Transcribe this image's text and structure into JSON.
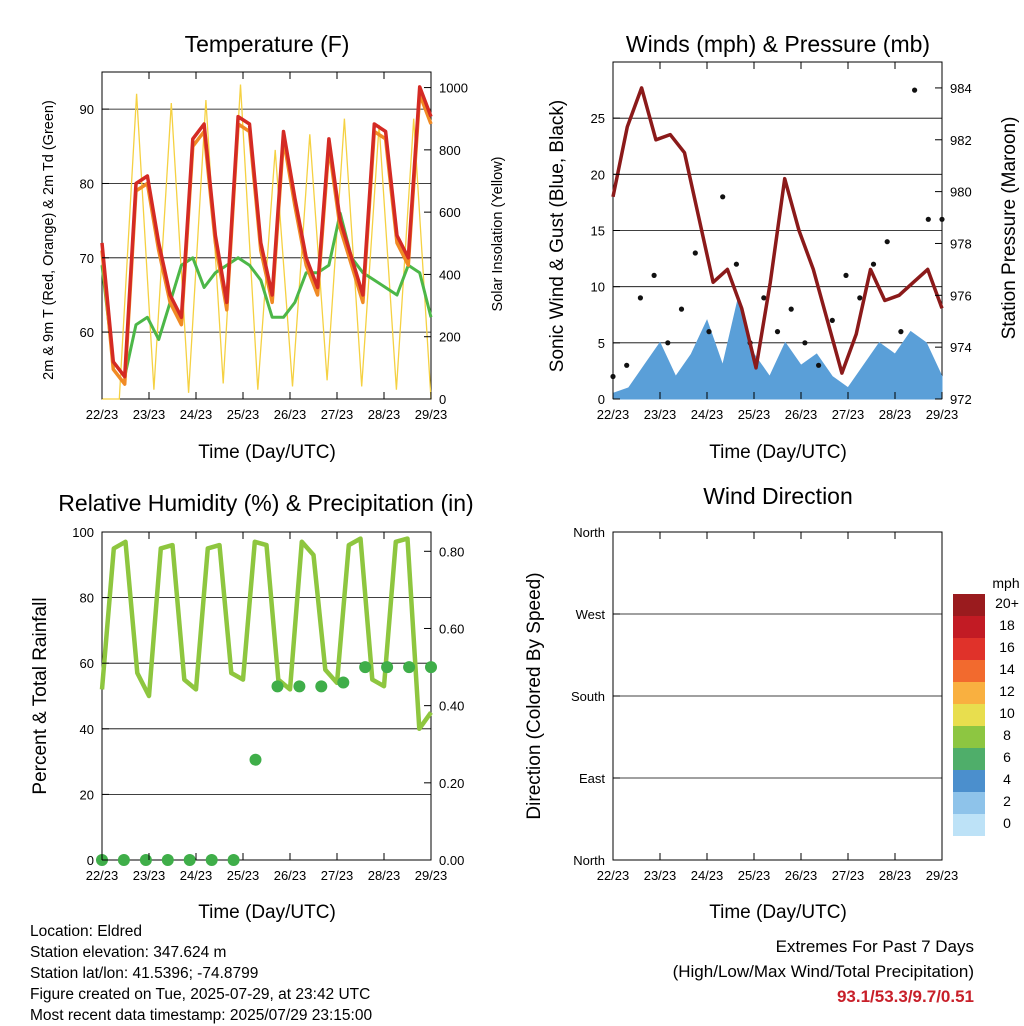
{
  "chart_data": [
    {
      "type": "line",
      "title": "Temperature (F)",
      "xlabel": "Time (Day/UTC)",
      "ylabel": "2m & 9m T (Red, Orange) & 2m Td (Green)",
      "y2label": "Solar Insolation (Yellow)",
      "x_ticks": [
        "22/23",
        "23/23",
        "24/23",
        "25/23",
        "26/23",
        "27/23",
        "28/23",
        "29/23"
      ],
      "y_ticks": [
        "60",
        "70",
        "80",
        "90"
      ],
      "y2_ticks": [
        "0",
        "200",
        "400",
        "600",
        "800",
        "1000"
      ],
      "ylim": [
        51,
        95
      ],
      "y2lim": [
        0,
        1050
      ],
      "grid": true,
      "series": [
        {
          "color": "#d42a24",
          "values": [
            72,
            56,
            54,
            80,
            81,
            72,
            65,
            62,
            86,
            88,
            73,
            64,
            89,
            88,
            72,
            65,
            87,
            78,
            70,
            66,
            86,
            75,
            70,
            65,
            88,
            87,
            73,
            70,
            93,
            89
          ]
        },
        {
          "color": "#f08a24",
          "values": [
            71,
            55,
            53,
            79,
            80,
            71,
            64,
            61,
            85,
            87,
            72,
            63,
            88,
            87,
            71,
            64,
            86,
            77,
            69,
            65,
            85,
            74,
            69,
            64,
            87,
            86,
            72,
            69,
            92,
            88
          ]
        },
        {
          "color": "#4cb748",
          "values": [
            69,
            56,
            54,
            61,
            62,
            59,
            64,
            69,
            70,
            66,
            68,
            69,
            70,
            69,
            67,
            62,
            62,
            64,
            68,
            68,
            69,
            76,
            70,
            68,
            67,
            66,
            65,
            69,
            68,
            62
          ]
        },
        {
          "color": "#f5d142",
          "values": [
            0,
            0,
            980,
            30,
            950,
            20,
            960,
            50,
            1010,
            30,
            800,
            40,
            850,
            60,
            900,
            40,
            880,
            30,
            900,
            0
          ]
        }
      ]
    },
    {
      "type": "scatter",
      "title": "Winds (mph) & Pressure (mb)",
      "xlabel": "Time (Day/UTC)",
      "ylabel": "Sonic Wind & Gust (Blue, Black)",
      "y2label": "Station Pressure (Maroon)",
      "x_ticks": [
        "22/23",
        "23/23",
        "24/23",
        "25/23",
        "26/23",
        "27/23",
        "28/23",
        "29/23"
      ],
      "y_ticks": [
        "0",
        "5",
        "10",
        "15",
        "20",
        "25"
      ],
      "y2_ticks": [
        "972",
        "974",
        "976",
        "978",
        "980",
        "982",
        "984"
      ],
      "ylim": [
        0,
        30
      ],
      "y2lim": [
        972,
        985
      ],
      "grid": true,
      "series": [
        {
          "color": "#8b1a1a",
          "values": [
            979.8,
            982.5,
            984.0,
            982.0,
            982.2,
            981.5,
            979.0,
            976.5,
            977.0,
            975.5,
            973.2,
            976.5,
            980.5,
            978.5,
            977.0,
            975.0,
            973.0,
            974.5,
            977.0,
            975.8,
            976.0,
            976.5,
            977.0,
            975.5
          ]
        },
        {
          "color": "#5a9fd8",
          "values": [
            0.5,
            1,
            3,
            5,
            2,
            4,
            7,
            3,
            9,
            4,
            2,
            5,
            3,
            4,
            2,
            1,
            3,
            5,
            4,
            6,
            5,
            2
          ]
        },
        {
          "color": "#111111",
          "values": [
            2,
            3,
            9,
            11,
            5,
            8,
            13,
            6,
            18,
            12,
            5,
            9,
            6,
            8,
            5,
            3,
            7,
            11,
            9,
            12,
            14,
            6,
            27.5,
            16,
            16
          ]
        }
      ]
    },
    {
      "type": "line",
      "title": "Relative Humidity (%) & Precipitation (in)",
      "xlabel": "Time (Day/UTC)",
      "ylabel": "Percent & Total Rainfall",
      "x_ticks": [
        "22/23",
        "23/23",
        "24/23",
        "25/23",
        "26/23",
        "27/23",
        "28/23",
        "29/23"
      ],
      "y_ticks": [
        "0",
        "20",
        "40",
        "60",
        "80",
        "100"
      ],
      "y2_ticks": [
        "0.00",
        "0.20",
        "0.40",
        "0.60",
        "0.80"
      ],
      "ylim": [
        0,
        100
      ],
      "y2lim": [
        0,
        0.85
      ],
      "grid": true,
      "series": [
        {
          "color": "#8ec63f",
          "values": [
            52,
            95,
            97,
            57,
            50,
            95,
            96,
            55,
            52,
            95,
            96,
            57,
            55,
            97,
            96,
            55,
            52,
            97,
            93,
            58,
            54,
            96,
            98,
            55,
            53,
            97,
            98,
            40,
            45
          ]
        },
        {
          "color": "#3fae49",
          "values": [
            0,
            0,
            0,
            0,
            0,
            0,
            0,
            0.26,
            0.45,
            0.45,
            0.45,
            0.46,
            0.5,
            0.5,
            0.5,
            0.5
          ]
        }
      ]
    },
    {
      "type": "scatter",
      "title": "Wind Direction",
      "xlabel": "Time (Day/UTC)",
      "ylabel": "Direction (Colored By Speed)",
      "x_ticks": [
        "22/23",
        "23/23",
        "24/23",
        "25/23",
        "26/23",
        "27/23",
        "28/23",
        "29/23"
      ],
      "y_ticks": [
        "North",
        "East",
        "South",
        "West",
        "North"
      ],
      "ylim": [
        0,
        360
      ],
      "grid": true,
      "legend_title": "mph",
      "legend": [
        "0",
        "2",
        "4",
        "6",
        "8",
        "10",
        "12",
        "14",
        "16",
        "18",
        "20+"
      ],
      "legend_colors": [
        "#bde2f7",
        "#8ec3ea",
        "#4b8fcd",
        "#4fae6a",
        "#8dc641",
        "#e8de4e",
        "#f9b040",
        "#f26a2e",
        "#e0322a",
        "#c21b24",
        "#9a1b1e"
      ]
    }
  ],
  "footer": {
    "location": "Location: Eldred",
    "elevation": "Station elevation: 347.624 m",
    "latlon": "Station lat/lon: 41.5396; -74.8799",
    "created": "Figure created on Tue, 2025-07-29, at 23:42 UTC",
    "timestamp": "Most recent data timestamp: 2025/07/29 23:15:00"
  },
  "extremes": {
    "title": "Extremes For Past 7 Days",
    "subtitle": "(High/Low/Max Wind/Total Precipitation)",
    "values": "93.1/53.3/9.7/0.51"
  }
}
